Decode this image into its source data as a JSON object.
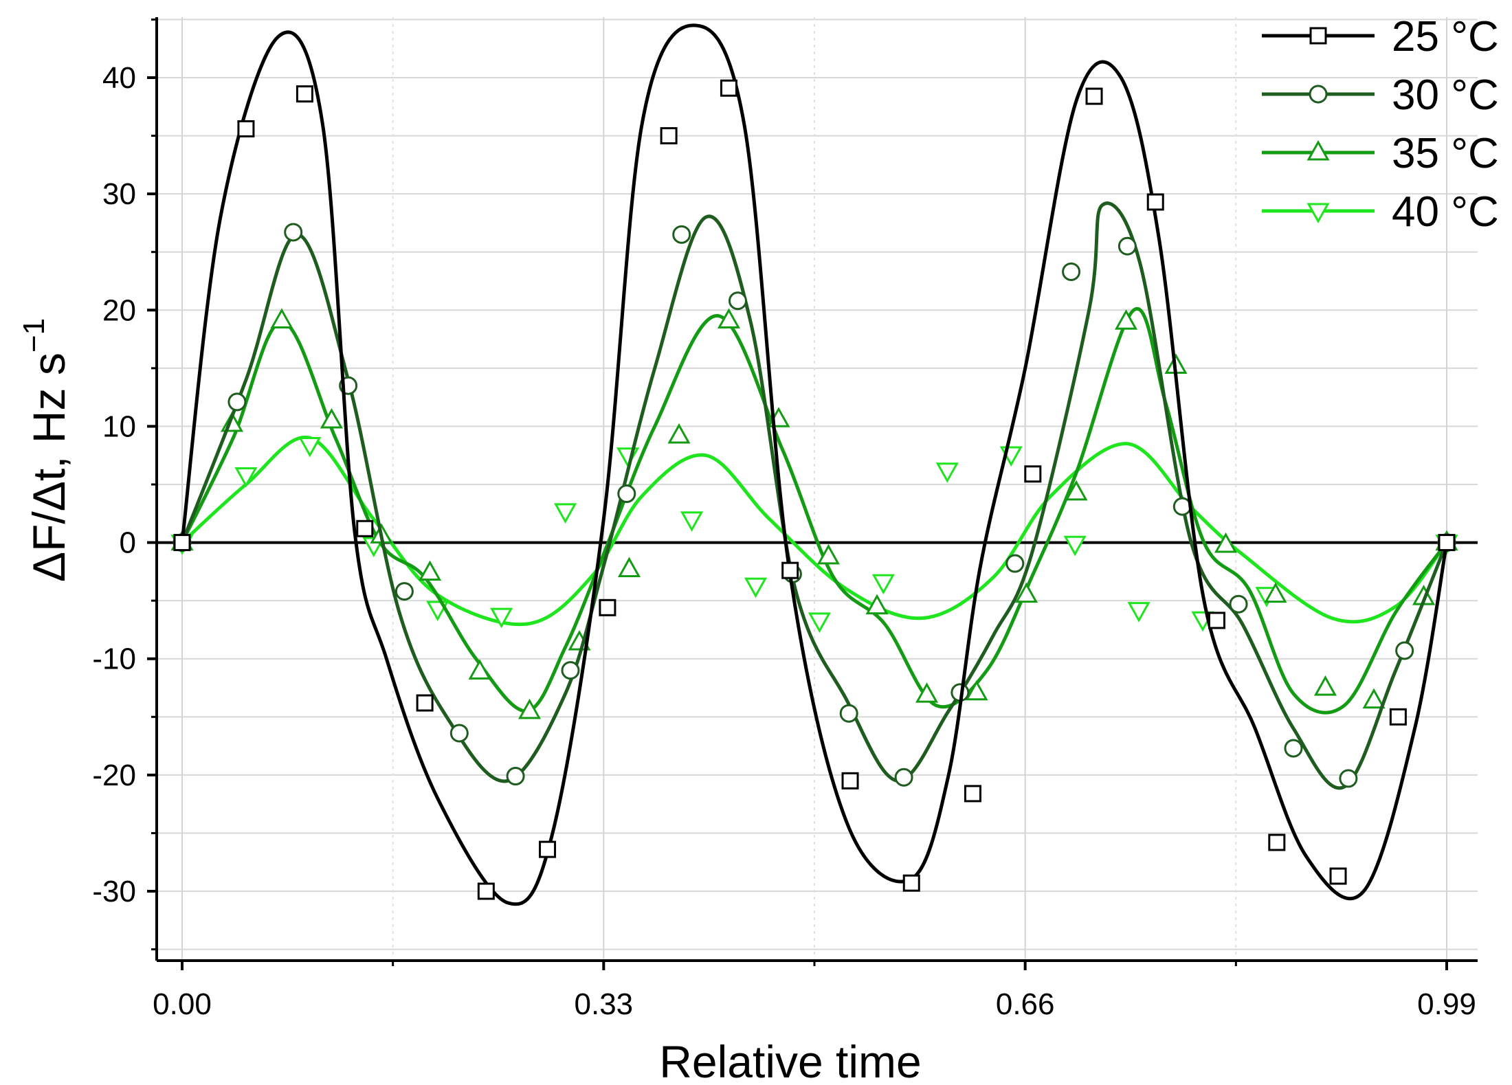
{
  "chart_data": {
    "type": "line",
    "title": "",
    "xlabel": "Relative time",
    "ylabel_main": "ΔF/Δt, Hz s",
    "ylabel_exponent": "−1",
    "xlim": [
      -0.02,
      1.02
    ],
    "ylim": [
      -35,
      45
    ],
    "x_ticks": [
      0.0,
      0.33,
      0.66,
      0.99
    ],
    "x_tick_labels": [
      "0.00",
      "0.33",
      "0.66",
      "0.99"
    ],
    "y_ticks": [
      -30,
      -20,
      -10,
      0,
      10,
      20,
      30,
      40
    ],
    "y_tick_labels": [
      "-30",
      "-20",
      "-10",
      "0",
      "10",
      "20",
      "30",
      "40"
    ],
    "grid": true,
    "legend_position": "top-right",
    "series": [
      {
        "name": "25 °C",
        "color": "#000000",
        "marker": "square",
        "curve_x": [
          0.0,
          0.03,
          0.075,
          0.11,
          0.135,
          0.16,
          0.2,
          0.255,
          0.29,
          0.33,
          0.36,
          0.4,
          0.44,
          0.475,
          0.52,
          0.57,
          0.6,
          0.625,
          0.66,
          0.7,
          0.735,
          0.765,
          0.8,
          0.84,
          0.88,
          0.925,
          0.965,
          0.99
        ],
        "curve_y": [
          0,
          28,
          43.5,
          36,
          1,
          -10,
          -22,
          -31,
          -25,
          2,
          36,
          44.5,
          36,
          -2,
          -24,
          -29,
          -20,
          -2,
          15,
          38,
          40,
          26,
          -5,
          -16,
          -27,
          -30,
          -16,
          0
        ],
        "markers": [
          {
            "x": 0.0,
            "y": 0
          },
          {
            "x": 0.05,
            "y": 35.6
          },
          {
            "x": 0.096,
            "y": 38.6
          },
          {
            "x": 0.143,
            "y": 1.2
          },
          {
            "x": 0.19,
            "y": -13.8
          },
          {
            "x": 0.238,
            "y": -30.0
          },
          {
            "x": 0.286,
            "y": -26.4
          },
          {
            "x": 0.333,
            "y": -5.6
          },
          {
            "x": 0.381,
            "y": 35.0
          },
          {
            "x": 0.428,
            "y": 39.1
          },
          {
            "x": 0.476,
            "y": -2.4
          },
          {
            "x": 0.523,
            "y": -20.5
          },
          {
            "x": 0.571,
            "y": -29.3
          },
          {
            "x": 0.619,
            "y": -21.6
          },
          {
            "x": 0.666,
            "y": 5.9
          },
          {
            "x": 0.714,
            "y": 38.4
          },
          {
            "x": 0.762,
            "y": 29.3
          },
          {
            "x": 0.81,
            "y": -6.7
          },
          {
            "x": 0.857,
            "y": -25.8
          },
          {
            "x": 0.905,
            "y": -28.7
          },
          {
            "x": 0.952,
            "y": -15.0
          },
          {
            "x": 0.99,
            "y": 0
          }
        ]
      },
      {
        "name": "30 °C",
        "color": "#1f5c1f",
        "marker": "circle",
        "curve_x": [
          0.0,
          0.05,
          0.09,
          0.13,
          0.17,
          0.21,
          0.255,
          0.3,
          0.33,
          0.37,
          0.41,
          0.445,
          0.48,
          0.52,
          0.56,
          0.6,
          0.635,
          0.665,
          0.71,
          0.72,
          0.75,
          0.79,
          0.83,
          0.87,
          0.91,
          0.95,
          0.99
        ],
        "curve_y": [
          0,
          14,
          26.5,
          14,
          -6,
          -15.5,
          -20.5,
          -13,
          -2,
          15,
          28,
          19,
          -4,
          -13.5,
          -20.5,
          -14.5,
          -8,
          -1,
          20,
          29,
          24,
          0,
          -7,
          -16,
          -21,
          -11,
          0
        ],
        "markers": [
          {
            "x": 0.0,
            "y": 0
          },
          {
            "x": 0.043,
            "y": 12.1
          },
          {
            "x": 0.087,
            "y": 26.7
          },
          {
            "x": 0.13,
            "y": 13.5
          },
          {
            "x": 0.174,
            "y": -4.2
          },
          {
            "x": 0.217,
            "y": -16.4
          },
          {
            "x": 0.261,
            "y": -20.1
          },
          {
            "x": 0.304,
            "y": -11.0
          },
          {
            "x": 0.348,
            "y": 4.2
          },
          {
            "x": 0.391,
            "y": 26.5
          },
          {
            "x": 0.435,
            "y": 20.8
          },
          {
            "x": 0.478,
            "y": -2.7
          },
          {
            "x": 0.522,
            "y": -14.7
          },
          {
            "x": 0.565,
            "y": -20.2
          },
          {
            "x": 0.609,
            "y": -12.9
          },
          {
            "x": 0.652,
            "y": -1.8
          },
          {
            "x": 0.696,
            "y": 23.3
          },
          {
            "x": 0.74,
            "y": 25.5
          },
          {
            "x": 0.783,
            "y": 3.1
          },
          {
            "x": 0.827,
            "y": -5.3
          },
          {
            "x": 0.87,
            "y": -17.7
          },
          {
            "x": 0.913,
            "y": -20.3
          },
          {
            "x": 0.957,
            "y": -9.3
          },
          {
            "x": 0.99,
            "y": 0
          }
        ]
      },
      {
        "name": "35 °C",
        "color": "#149b14",
        "marker": "triangle-up",
        "curve_x": [
          0.0,
          0.04,
          0.078,
          0.12,
          0.155,
          0.19,
          0.23,
          0.27,
          0.3,
          0.33,
          0.37,
          0.42,
          0.47,
          0.51,
          0.55,
          0.59,
          0.63,
          0.665,
          0.7,
          0.745,
          0.77,
          0.8,
          0.835,
          0.87,
          0.91,
          0.95,
          0.99
        ],
        "curve_y": [
          0,
          9,
          19,
          9,
          0,
          -3,
          -10,
          -14.5,
          -9,
          -1,
          10,
          19.5,
          8,
          -3,
          -7,
          -14,
          -11,
          -3,
          6,
          20,
          12,
          0,
          -4,
          -13,
          -14,
          -6,
          0
        ],
        "markers": [
          {
            "x": 0.0,
            "y": 0
          },
          {
            "x": 0.039,
            "y": 10.2
          },
          {
            "x": 0.078,
            "y": 19.1
          },
          {
            "x": 0.117,
            "y": 10.5
          },
          {
            "x": 0.156,
            "y": 0.6
          },
          {
            "x": 0.194,
            "y": -2.6
          },
          {
            "x": 0.233,
            "y": -11.1
          },
          {
            "x": 0.272,
            "y": -14.5
          },
          {
            "x": 0.311,
            "y": -8.6
          },
          {
            "x": 0.35,
            "y": -2.3
          },
          {
            "x": 0.389,
            "y": 9.2
          },
          {
            "x": 0.428,
            "y": 19.1
          },
          {
            "x": 0.467,
            "y": 10.6
          },
          {
            "x": 0.506,
            "y": -1.2
          },
          {
            "x": 0.544,
            "y": -5.5
          },
          {
            "x": 0.583,
            "y": -13.1
          },
          {
            "x": 0.622,
            "y": -12.9
          },
          {
            "x": 0.661,
            "y": -4.5
          },
          {
            "x": 0.7,
            "y": 4.3
          },
          {
            "x": 0.739,
            "y": 19.0
          },
          {
            "x": 0.778,
            "y": 15.2
          },
          {
            "x": 0.817,
            "y": -0.2
          },
          {
            "x": 0.856,
            "y": -4.5
          },
          {
            "x": 0.895,
            "y": -12.5
          },
          {
            "x": 0.933,
            "y": -13.6
          },
          {
            "x": 0.972,
            "y": -4.7
          },
          {
            "x": 0.99,
            "y": 0
          }
        ]
      },
      {
        "name": "40 °C",
        "color": "#1ee51e",
        "marker": "triangle-down",
        "curve_x": [
          0.0,
          0.05,
          0.1,
          0.15,
          0.2,
          0.27,
          0.32,
          0.36,
          0.41,
          0.46,
          0.52,
          0.58,
          0.635,
          0.68,
          0.74,
          0.79,
          0.83,
          0.9,
          0.95,
          0.99
        ],
        "curve_y": [
          0,
          5,
          9,
          2,
          -4.5,
          -7,
          -3,
          4,
          7.5,
          2,
          -4,
          -6.5,
          -3,
          4,
          8.5,
          3,
          -1,
          -6.5,
          -5.5,
          0
        ],
        "markers": [
          {
            "x": 0.0,
            "y": 0
          },
          {
            "x": 0.05,
            "y": 5.8
          },
          {
            "x": 0.1,
            "y": 8.4
          },
          {
            "x": 0.15,
            "y": -0.2
          },
          {
            "x": 0.2,
            "y": -5.7
          },
          {
            "x": 0.25,
            "y": -6.3
          },
          {
            "x": 0.3,
            "y": 2.7
          },
          {
            "x": 0.349,
            "y": 7.5
          },
          {
            "x": 0.399,
            "y": 2.0
          },
          {
            "x": 0.449,
            "y": -3.7
          },
          {
            "x": 0.499,
            "y": -6.7
          },
          {
            "x": 0.549,
            "y": -3.4
          },
          {
            "x": 0.599,
            "y": 6.2
          },
          {
            "x": 0.649,
            "y": 7.6
          },
          {
            "x": 0.699,
            "y": -0.1
          },
          {
            "x": 0.749,
            "y": -5.8
          },
          {
            "x": 0.799,
            "y": -6.6
          },
          {
            "x": 0.849,
            "y": -4.5
          },
          {
            "x": 0.99,
            "y": 0
          }
        ]
      }
    ]
  }
}
